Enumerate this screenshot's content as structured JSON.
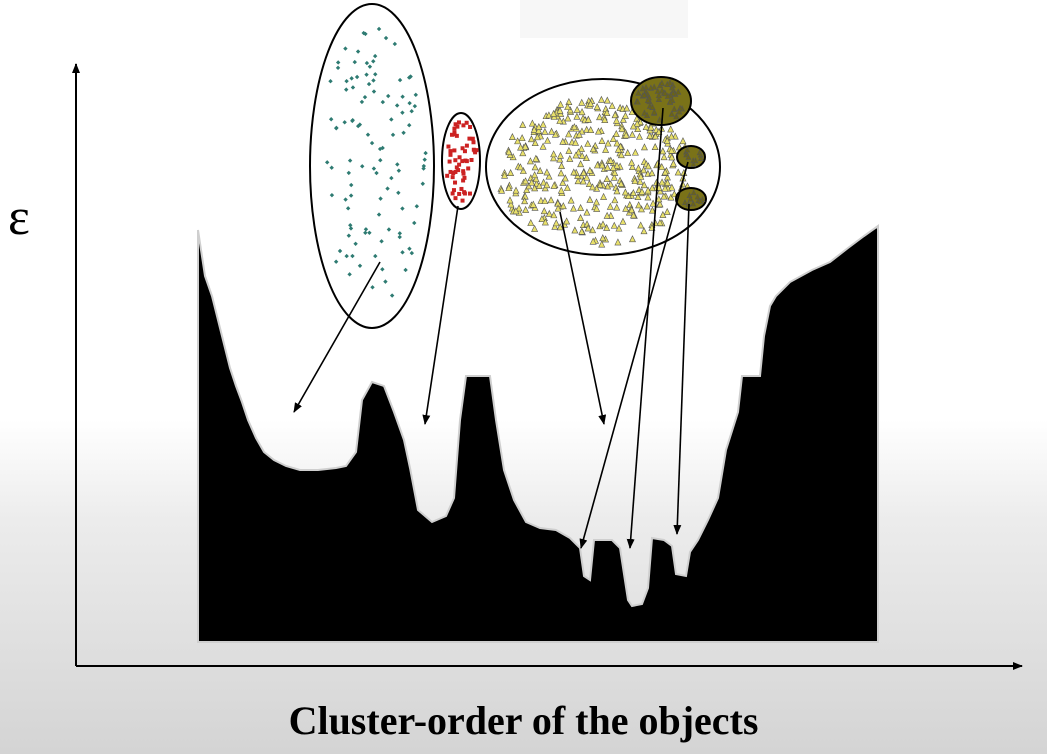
{
  "diagram": {
    "x_axis_label": "Cluster-order of the objects",
    "y_axis_label": "ε",
    "colors": {
      "background_top": "#ffffff",
      "background_bottom": "#d4d4d4",
      "plot_fill": "#000000",
      "cluster_teal": "#2e7b72",
      "cluster_red": "#cc2222",
      "cluster_yellow": "#e8e06a",
      "subcluster_olive": "#6b6414"
    },
    "clusters": [
      {
        "name": "teal-cluster",
        "marker": "diamond",
        "color": "#2e7b72"
      },
      {
        "name": "red-cluster",
        "marker": "square",
        "color": "#cc2222"
      },
      {
        "name": "yellow-cluster",
        "marker": "triangle",
        "color": "#e8e06a"
      },
      {
        "name": "olive-subcluster",
        "marker": "triangle",
        "color": "#6b6414"
      }
    ]
  }
}
